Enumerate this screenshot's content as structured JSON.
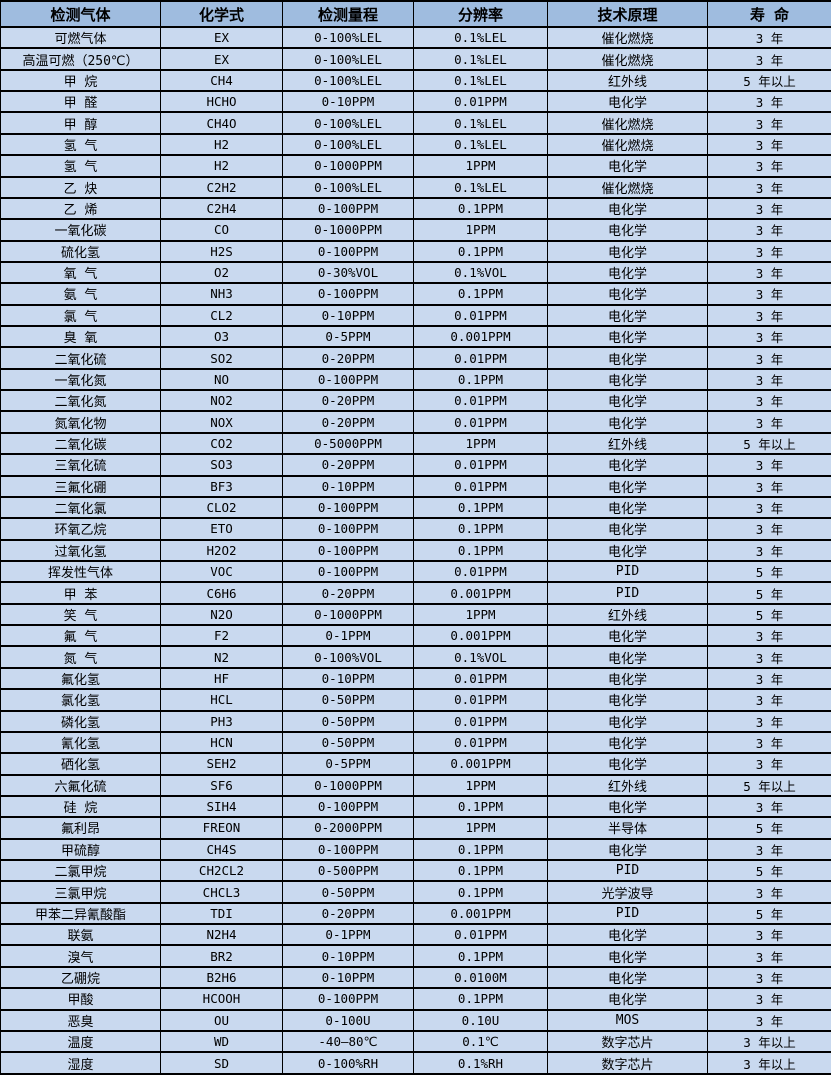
{
  "colors": {
    "header_bg": "#9fbcdf",
    "row_bg": "#c9d9ef",
    "border": "#000000",
    "text": "#000000"
  },
  "table": {
    "headers": [
      "检测气体",
      "化学式",
      "检测量程",
      "分辨率",
      "技术原理",
      "寿 命"
    ],
    "column_keys": [
      "gas",
      "formula",
      "range",
      "resolution",
      "principle",
      "life"
    ],
    "rows": [
      {
        "gas": "可燃气体",
        "formula": "EX",
        "range": "0-100%LEL",
        "resolution": "0.1%LEL",
        "principle": "催化燃烧",
        "life": "3 年"
      },
      {
        "gas": "高温可燃（250℃）",
        "formula": "EX",
        "range": "0-100%LEL",
        "resolution": "0.1%LEL",
        "principle": "催化燃烧",
        "life": "3 年"
      },
      {
        "gas": "甲 烷",
        "formula": "CH4",
        "range": "0-100%LEL",
        "resolution": "0.1%LEL",
        "principle": "红外线",
        "life": "5 年以上"
      },
      {
        "gas": "甲 醛",
        "formula": "HCHO",
        "range": "0-10PPM",
        "resolution": "0.01PPM",
        "principle": "电化学",
        "life": "3 年"
      },
      {
        "gas": "甲 醇",
        "formula": "CH4O",
        "range": "0-100%LEL",
        "resolution": "0.1%LEL",
        "principle": "催化燃烧",
        "life": "3 年"
      },
      {
        "gas": "氢 气",
        "formula": "H2",
        "range": "0-100%LEL",
        "resolution": "0.1%LEL",
        "principle": "催化燃烧",
        "life": "3 年"
      },
      {
        "gas": "氢 气",
        "formula": "H2",
        "range": "0-1000PPM",
        "resolution": "1PPM",
        "principle": "电化学",
        "life": "3 年"
      },
      {
        "gas": "乙 炔",
        "formula": "C2H2",
        "range": "0-100%LEL",
        "resolution": "0.1%LEL",
        "principle": "催化燃烧",
        "life": "3 年"
      },
      {
        "gas": "乙 烯",
        "formula": "C2H4",
        "range": "0-100PPM",
        "resolution": "0.1PPM",
        "principle": "电化学",
        "life": "3 年"
      },
      {
        "gas": "一氧化碳",
        "formula": "CO",
        "range": "0-1000PPM",
        "resolution": "1PPM",
        "principle": "电化学",
        "life": "3 年"
      },
      {
        "gas": "硫化氢",
        "formula": "H2S",
        "range": "0-100PPM",
        "resolution": "0.1PPM",
        "principle": "电化学",
        "life": "3 年"
      },
      {
        "gas": "氧 气",
        "formula": "O2",
        "range": "0-30%VOL",
        "resolution": "0.1%VOL",
        "principle": "电化学",
        "life": "3 年"
      },
      {
        "gas": "氨 气",
        "formula": "NH3",
        "range": "0-100PPM",
        "resolution": "0.1PPM",
        "principle": "电化学",
        "life": "3 年"
      },
      {
        "gas": "氯 气",
        "formula": "CL2",
        "range": "0-10PPM",
        "resolution": "0.01PPM",
        "principle": "电化学",
        "life": "3 年"
      },
      {
        "gas": "臭 氧",
        "formula": "O3",
        "range": "0-5PPM",
        "resolution": "0.001PPM",
        "principle": "电化学",
        "life": "3 年"
      },
      {
        "gas": "二氧化硫",
        "formula": "SO2",
        "range": "0-20PPM",
        "resolution": "0.01PPM",
        "principle": "电化学",
        "life": "3 年"
      },
      {
        "gas": "一氧化氮",
        "formula": "NO",
        "range": "0-100PPM",
        "resolution": "0.1PPM",
        "principle": "电化学",
        "life": "3 年"
      },
      {
        "gas": "二氧化氮",
        "formula": "NO2",
        "range": "0-20PPM",
        "resolution": "0.01PPM",
        "principle": "电化学",
        "life": "3 年"
      },
      {
        "gas": "氮氧化物",
        "formula": "NOX",
        "range": "0-20PPM",
        "resolution": "0.01PPM",
        "principle": "电化学",
        "life": "3 年"
      },
      {
        "gas": "二氧化碳",
        "formula": "CO2",
        "range": "0-5000PPM",
        "resolution": "1PPM",
        "principle": "红外线",
        "life": "5 年以上"
      },
      {
        "gas": "三氧化硫",
        "formula": "SO3",
        "range": "0-20PPM",
        "resolution": "0.01PPM",
        "principle": "电化学",
        "life": "3 年"
      },
      {
        "gas": "三氟化硼",
        "formula": "BF3",
        "range": "0-10PPM",
        "resolution": "0.01PPM",
        "principle": "电化学",
        "life": "3 年"
      },
      {
        "gas": "二氧化氯",
        "formula": "CLO2",
        "range": "0-100PPM",
        "resolution": "0.1PPM",
        "principle": "电化学",
        "life": "3 年"
      },
      {
        "gas": "环氧乙烷",
        "formula": "ETO",
        "range": "0-100PPM",
        "resolution": "0.1PPM",
        "principle": "电化学",
        "life": "3 年"
      },
      {
        "gas": "过氧化氢",
        "formula": "H2O2",
        "range": "0-100PPM",
        "resolution": "0.1PPM",
        "principle": "电化学",
        "life": "3 年"
      },
      {
        "gas": "挥发性气体",
        "formula": "VOC",
        "range": "0-100PPM",
        "resolution": "0.01PPM",
        "principle": "PID",
        "life": "5 年"
      },
      {
        "gas": "甲 苯",
        "formula": "C6H6",
        "range": "0-20PPM",
        "resolution": "0.001PPM",
        "principle": "PID",
        "life": "5 年"
      },
      {
        "gas": "笑 气",
        "formula": "N2O",
        "range": "0-1000PPM",
        "resolution": "1PPM",
        "principle": "红外线",
        "life": "5 年"
      },
      {
        "gas": "氟 气",
        "formula": "F2",
        "range": "0-1PPM",
        "resolution": "0.001PPM",
        "principle": "电化学",
        "life": "3 年"
      },
      {
        "gas": "氮 气",
        "formula": "N2",
        "range": "0-100%VOL",
        "resolution": "0.1%VOL",
        "principle": "电化学",
        "life": "3 年"
      },
      {
        "gas": "氟化氢",
        "formula": "HF",
        "range": "0-10PPM",
        "resolution": "0.01PPM",
        "principle": "电化学",
        "life": "3 年"
      },
      {
        "gas": "氯化氢",
        "formula": "HCL",
        "range": "0-50PPM",
        "resolution": "0.01PPM",
        "principle": "电化学",
        "life": "3 年"
      },
      {
        "gas": "磷化氢",
        "formula": "PH3",
        "range": "0-50PPM",
        "resolution": "0.01PPM",
        "principle": "电化学",
        "life": "3 年"
      },
      {
        "gas": "氰化氢",
        "formula": "HCN",
        "range": "0-50PPM",
        "resolution": "0.01PPM",
        "principle": "电化学",
        "life": "3 年"
      },
      {
        "gas": "硒化氢",
        "formula": "SEH2",
        "range": "0-5PPM",
        "resolution": "0.001PPM",
        "principle": "电化学",
        "life": "3 年"
      },
      {
        "gas": "六氟化硫",
        "formula": "SF6",
        "range": "0-1000PPM",
        "resolution": "1PPM",
        "principle": "红外线",
        "life": "5 年以上"
      },
      {
        "gas": "硅 烷",
        "formula": "SIH4",
        "range": "0-100PPM",
        "resolution": "0.1PPM",
        "principle": "电化学",
        "life": "3 年"
      },
      {
        "gas": "氟利昂",
        "formula": "FREON",
        "range": "0-2000PPM",
        "resolution": "1PPM",
        "principle": "半导体",
        "life": "5 年"
      },
      {
        "gas": "甲硫醇",
        "formula": "CH4S",
        "range": "0-100PPM",
        "resolution": "0.1PPM",
        "principle": "电化学",
        "life": "3 年"
      },
      {
        "gas": "二氯甲烷",
        "formula": "CH2CL2",
        "range": "0-500PPM",
        "resolution": "0.1PPM",
        "principle": "PID",
        "life": "5 年"
      },
      {
        "gas": "三氯甲烷",
        "formula": "CHCL3",
        "range": "0-50PPM",
        "resolution": "0.1PPM",
        "principle": "光学波导",
        "life": "3 年"
      },
      {
        "gas": "甲苯二异氰酸酯",
        "formula": "TDI",
        "range": "0-20PPM",
        "resolution": "0.001PPM",
        "principle": "PID",
        "life": "5 年"
      },
      {
        "gas": "联氨",
        "formula": "N2H4",
        "range": "0-1PPM",
        "resolution": "0.01PPM",
        "principle": "电化学",
        "life": "3 年"
      },
      {
        "gas": "溴气",
        "formula": "BR2",
        "range": "0-10PPM",
        "resolution": "0.1PPM",
        "principle": "电化学",
        "life": "3 年"
      },
      {
        "gas": "乙硼烷",
        "formula": "B2H6",
        "range": "0-10PPM",
        "resolution": "0.0100M",
        "principle": "电化学",
        "life": "3 年"
      },
      {
        "gas": "甲酸",
        "formula": "HCOOH",
        "range": "0-100PPM",
        "resolution": "0.1PPM",
        "principle": "电化学",
        "life": "3 年"
      },
      {
        "gas": "恶臭",
        "formula": "OU",
        "range": "0-100U",
        "resolution": "0.10U",
        "principle": "MOS",
        "life": "3 年"
      },
      {
        "gas": "温度",
        "formula": "WD",
        "range": "-40—80℃",
        "resolution": "0.1℃",
        "principle": "数字芯片",
        "life": "3 年以上"
      },
      {
        "gas": "湿度",
        "formula": "SD",
        "range": "0-100%RH",
        "resolution": "0.1%RH",
        "principle": "数字芯片",
        "life": "3 年以上"
      }
    ]
  }
}
